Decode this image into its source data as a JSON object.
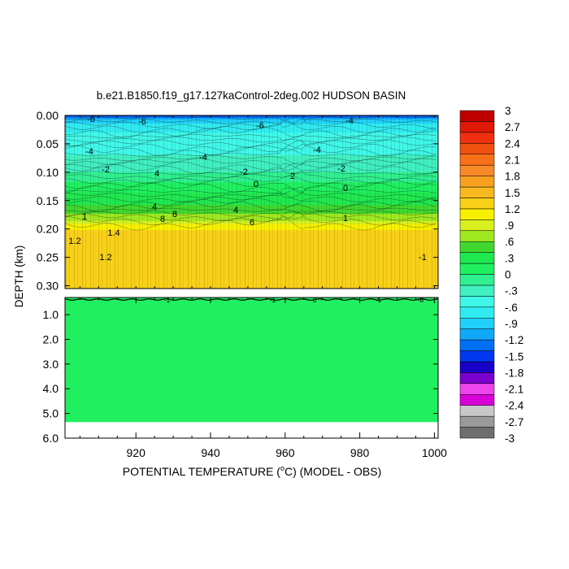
{
  "chart_data": {
    "type": "heatmap",
    "title": "b.e21.B1850.f19_g17.127kaControl-2deg.002 HUDSON BASIN",
    "xlabel": "POTENTIAL TEMPERATURE (",
    "xlabel_degree": "o",
    "xlabel_suffix": "C) (MODEL - OBS)",
    "ylabel": "DEPTH (km)",
    "xlim": [
      901,
      1001
    ],
    "x_ticks": [
      "920",
      "940",
      "960",
      "980",
      "1000"
    ],
    "x_tick_values": [
      920,
      940,
      960,
      980,
      1000
    ],
    "upper_panel": {
      "ylim": [
        0.0,
        0.305
      ],
      "y_ticks": [
        "0.00",
        "0.05",
        "0.10",
        "0.15",
        "0.20",
        "0.25",
        "0.30"
      ],
      "y_tick_values": [
        0.0,
        0.05,
        0.1,
        0.15,
        0.2,
        0.25,
        0.3
      ],
      "depth_profile": {
        "depth": [
          0.0,
          0.005,
          0.01,
          0.02,
          0.03,
          0.05,
          0.07,
          0.09,
          0.11,
          0.13,
          0.15,
          0.17,
          0.185,
          0.19,
          0.195,
          0.21,
          0.25,
          0.3
        ],
        "value": [
          -1.5,
          -1.1,
          -0.9,
          -0.7,
          -0.6,
          -0.5,
          -0.4,
          -0.3,
          -0.1,
          0.15,
          0.3,
          0.55,
          0.75,
          0.9,
          1.1,
          1.3,
          1.3,
          1.3
        ]
      },
      "contour_labels": [
        "-6",
        "-6",
        "-6",
        "-4",
        "-4",
        "-4",
        "-4",
        "-2",
        "-2",
        "-2",
        "0",
        "0",
        "2",
        "4",
        "4",
        "4",
        "6",
        "8",
        "8",
        "1",
        "1",
        "1.2",
        "1.2",
        "1.4",
        "-1"
      ]
    },
    "lower_panel": {
      "ylim": [
        0.305,
        6.0
      ],
      "y_ticks": [
        "1.0",
        "2.0",
        "3.0",
        "4.0",
        "5.0",
        "6.0"
      ],
      "y_tick_values": [
        1.0,
        2.0,
        3.0,
        4.0,
        5.0,
        6.0
      ],
      "value": 0.0,
      "data_bottom_depth": 5.35
    },
    "colorbar": {
      "min": -3,
      "max": 3,
      "labels": [
        "3",
        "2.7",
        "2.4",
        "2.1",
        "1.8",
        "1.5",
        "1.2",
        ".9",
        ".6",
        ".3",
        "0",
        "-.3",
        "-.6",
        "-.9",
        "-1.2",
        "-1.5",
        "-1.8",
        "-2.1",
        "-2.4",
        "-2.7",
        "-3"
      ],
      "label_values": [
        3,
        2.7,
        2.4,
        2.1,
        1.8,
        1.5,
        1.2,
        0.9,
        0.6,
        0.3,
        0,
        -0.3,
        -0.6,
        -0.9,
        -1.2,
        -1.5,
        -1.8,
        -2.1,
        -2.4,
        -2.7,
        -3
      ],
      "colors": [
        "#6e6e6e",
        "#9a9a9a",
        "#c8c8c8",
        "#d800d8",
        "#ee44ee",
        "#7a00d0",
        "#1800c8",
        "#0038f0",
        "#0070f8",
        "#10a8f8",
        "#20d0f8",
        "#30ecf0",
        "#40f8e8",
        "#40f0c0",
        "#30f090",
        "#20f060",
        "#20e850",
        "#40d830",
        "#a0e820",
        "#d8f020",
        "#f8f000",
        "#f8d018",
        "#f8b820",
        "#f8a020",
        "#f88828",
        "#f87018",
        "#f05010",
        "#f03010",
        "#e01808",
        "#c00000"
      ]
    }
  }
}
